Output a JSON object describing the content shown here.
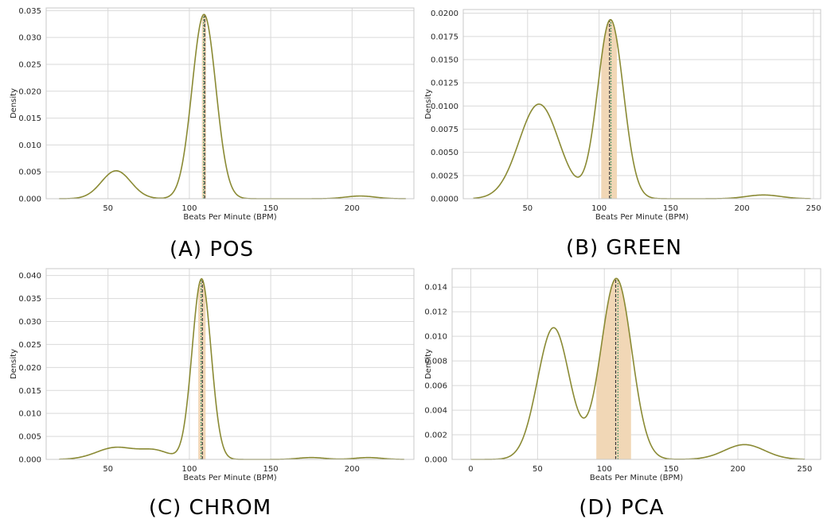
{
  "colors": {
    "curve": "#8a8a34",
    "band": "#f1d7b6",
    "mean_line": "#3a3a3a",
    "median_line": "#2e8b57",
    "grid": "#d9d9d9",
    "spine": "#c8c8c8"
  },
  "chart_data": [
    {
      "type": "line",
      "caption": "(A) POS",
      "xlabel": "Beats Per Minute (BPM)",
      "ylabel": "Density",
      "xlim": [
        12,
        238
      ],
      "ylim": [
        0,
        0.0355
      ],
      "xticks": [
        50,
        100,
        150,
        200
      ],
      "yticks": [
        0.0,
        0.005,
        0.01,
        0.015,
        0.02,
        0.025,
        0.03,
        0.035
      ],
      "ytick_labels": [
        "0.000",
        "0.005",
        "0.010",
        "0.015",
        "0.020",
        "0.025",
        "0.030",
        "0.035"
      ],
      "grid": true,
      "x_range": [
        20,
        233
      ],
      "peaks": [
        {
          "mu": 55,
          "sigma": 9,
          "amp": 0.0052
        },
        {
          "mu": 109,
          "sigma": 7.3,
          "amp": 0.0343
        },
        {
          "mu": 205,
          "sigma": 9,
          "amp": 0.0005
        }
      ],
      "band": [
        107.7,
        110.3
      ],
      "mean": 109.4,
      "median": 108.8
    },
    {
      "type": "line",
      "caption": "(B) GREEN",
      "xlabel": "Beats Per Minute (BPM)",
      "ylabel": "Density",
      "xlim": [
        5,
        255
      ],
      "ylim": [
        0,
        0.0204
      ],
      "xticks": [
        50,
        100,
        150,
        200,
        250
      ],
      "yticks": [
        0,
        0.0025,
        0.005,
        0.0075,
        0.01,
        0.0125,
        0.015,
        0.0175,
        0.02
      ],
      "ytick_labels": [
        "0.0000",
        "0.0025",
        "0.0050",
        "0.0075",
        "0.0100",
        "0.0125",
        "0.0150",
        "0.0175",
        "0.0200"
      ],
      "grid": true,
      "x_range": [
        12,
        248
      ],
      "peaks": [
        {
          "mu": 58,
          "sigma": 14,
          "amp": 0.0102
        },
        {
          "mu": 108,
          "sigma": 9,
          "amp": 0.0193
        },
        {
          "mu": 215,
          "sigma": 12,
          "amp": 0.0004
        }
      ],
      "band": [
        101.5,
        112.5
      ],
      "mean": 107.3,
      "median": 108.3
    },
    {
      "type": "line",
      "caption": "(C) CHROM",
      "xlabel": "Beats Per Minute (BPM)",
      "ylabel": "Density",
      "xlim": [
        12,
        238
      ],
      "ylim": [
        0,
        0.0415
      ],
      "xticks": [
        50,
        100,
        150,
        200
      ],
      "yticks": [
        0.0,
        0.005,
        0.01,
        0.015,
        0.02,
        0.025,
        0.03,
        0.035,
        0.04
      ],
      "ytick_labels": [
        "0.000",
        "0.005",
        "0.010",
        "0.015",
        "0.020",
        "0.025",
        "0.030",
        "0.035",
        "0.040"
      ],
      "grid": true,
      "x_range": [
        20,
        232
      ],
      "peaks": [
        {
          "mu": 55,
          "sigma": 12,
          "amp": 0.0026
        },
        {
          "mu": 79,
          "sigma": 9,
          "amp": 0.0018
        },
        {
          "mu": 107.5,
          "sigma": 5.8,
          "amp": 0.0393
        },
        {
          "mu": 175,
          "sigma": 8,
          "amp": 0.0004
        },
        {
          "mu": 210,
          "sigma": 8,
          "amp": 0.0004
        }
      ],
      "band": [
        105.5,
        110
      ],
      "mean": 108.0,
      "median": 107.2
    },
    {
      "type": "line",
      "caption": "(D) PCA",
      "xlabel": "Beats Per Minute (BPM)",
      "ylabel": "Density",
      "xlim": [
        -14,
        262
      ],
      "ylim": [
        0,
        0.0155
      ],
      "xticks": [
        0,
        50,
        100,
        150,
        200,
        250
      ],
      "yticks": [
        0.0,
        0.002,
        0.004,
        0.006,
        0.008,
        0.01,
        0.012,
        0.014
      ],
      "ytick_labels": [
        "0.000",
        "0.002",
        "0.004",
        "0.006",
        "0.008",
        "0.010",
        "0.012",
        "0.014"
      ],
      "grid": true,
      "x_range": [
        0,
        250
      ],
      "peaks": [
        {
          "mu": 62,
          "sigma": 12,
          "amp": 0.0107
        },
        {
          "mu": 109,
          "sigma": 11.5,
          "amp": 0.0147
        },
        {
          "mu": 205,
          "sigma": 15,
          "amp": 0.0012
        }
      ],
      "band": [
        94,
        120
      ],
      "mean": 108.5,
      "median": 110.2
    }
  ]
}
